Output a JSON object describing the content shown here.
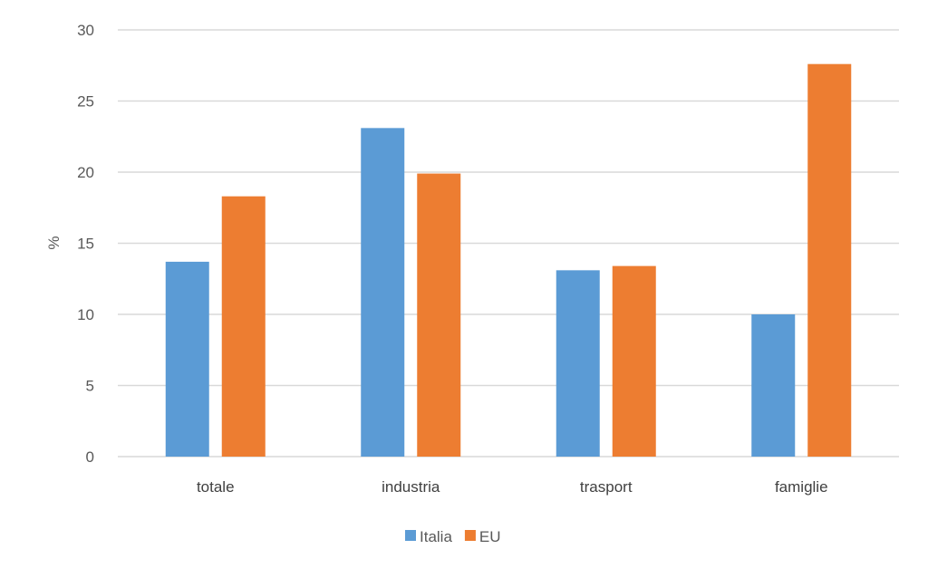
{
  "chart_data": {
    "type": "bar",
    "title": "",
    "xlabel": "",
    "ylabel": "%",
    "ylim": [
      0,
      30
    ],
    "yticks": [
      0,
      5,
      10,
      15,
      20,
      25,
      30
    ],
    "grid": true,
    "legend_position": "bottom",
    "categories": [
      "totale",
      "industria",
      "trasport",
      "famiglie"
    ],
    "series": [
      {
        "name": "Italia",
        "color": "#5b9bd5",
        "values": [
          13.7,
          23.1,
          13.1,
          10.0
        ]
      },
      {
        "name": "EU",
        "color": "#ed7d31",
        "values": [
          18.3,
          19.9,
          13.4,
          27.6
        ]
      }
    ]
  }
}
